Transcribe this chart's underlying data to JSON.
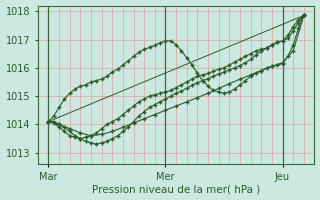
{
  "xlabel": "Pression niveau de la mer( hPa )",
  "ylim": [
    1012.6,
    1018.2
  ],
  "xlim": [
    0,
    52
  ],
  "yticks": [
    1013,
    1014,
    1015,
    1016,
    1017,
    1018
  ],
  "xticks": [
    2,
    24,
    46
  ],
  "xticklabels": [
    "Mar",
    "Mer",
    "Jeu"
  ],
  "vlines_major": [
    2,
    24,
    46
  ],
  "bg_color": "#cce8e0",
  "grid_color_v": "#e8a0a0",
  "grid_color_h": "#e8a0a0",
  "line_color": "#2a5c2a",
  "line_color_light": "#4a8a4a",
  "line1_x": [
    2,
    3,
    4,
    5,
    6,
    7,
    8,
    9,
    10,
    11,
    12,
    13,
    14,
    15,
    16,
    17,
    18,
    19,
    20,
    21,
    22,
    23,
    24,
    25,
    26,
    27,
    28,
    29,
    30,
    31,
    32,
    33,
    34,
    35,
    36,
    37,
    38,
    39,
    40,
    41,
    42,
    43,
    44,
    45,
    46,
    47,
    48,
    49,
    50
  ],
  "line1_y": [
    1014.1,
    1014.05,
    1013.9,
    1013.75,
    1013.6,
    1013.55,
    1013.5,
    1013.55,
    1013.6,
    1013.7,
    1013.85,
    1014.0,
    1014.1,
    1014.2,
    1014.35,
    1014.5,
    1014.65,
    1014.8,
    1014.9,
    1015.0,
    1015.05,
    1015.1,
    1015.15,
    1015.2,
    1015.3,
    1015.4,
    1015.5,
    1015.6,
    1015.7,
    1015.75,
    1015.8,
    1015.88,
    1015.95,
    1016.0,
    1016.1,
    1016.2,
    1016.3,
    1016.4,
    1016.5,
    1016.6,
    1016.65,
    1016.7,
    1016.8,
    1016.9,
    1016.95,
    1017.05,
    1017.3,
    1017.6,
    1017.85
  ],
  "line2_x": [
    2,
    3,
    4,
    5,
    6,
    7,
    8,
    9,
    10,
    11,
    12,
    13,
    14,
    15,
    16,
    17,
    18,
    19,
    20,
    21,
    22,
    23,
    24,
    25,
    26,
    27,
    28,
    29,
    30,
    31,
    32,
    33,
    34,
    35,
    36,
    37,
    38,
    39,
    40,
    41,
    42,
    43,
    44,
    45,
    46,
    47,
    48,
    49,
    50
  ],
  "line2_y": [
    1014.1,
    1014.3,
    1014.6,
    1014.9,
    1015.1,
    1015.25,
    1015.35,
    1015.4,
    1015.5,
    1015.55,
    1015.6,
    1015.7,
    1015.85,
    1015.95,
    1016.1,
    1016.25,
    1016.4,
    1016.55,
    1016.65,
    1016.72,
    1016.8,
    1016.88,
    1016.95,
    1016.95,
    1016.82,
    1016.6,
    1016.35,
    1016.1,
    1015.8,
    1015.55,
    1015.35,
    1015.2,
    1015.15,
    1015.1,
    1015.15,
    1015.25,
    1015.4,
    1015.55,
    1015.7,
    1015.8,
    1015.9,
    1016.0,
    1016.05,
    1016.1,
    1016.15,
    1016.4,
    1016.8,
    1017.4,
    1017.85
  ],
  "line3_x": [
    2,
    3,
    4,
    5,
    6,
    7,
    8,
    9,
    10,
    11,
    12,
    13,
    14,
    15,
    16,
    17,
    18,
    19,
    20,
    21,
    22,
    23,
    24,
    25,
    26,
    27,
    28,
    29,
    30,
    31,
    32,
    33,
    34,
    35,
    36,
    37,
    38,
    39,
    40,
    41,
    42,
    43,
    44,
    45,
    46,
    47,
    48,
    49,
    50
  ],
  "line3_y": [
    1014.1,
    1014.1,
    1014.0,
    1013.9,
    1013.75,
    1013.6,
    1013.5,
    1013.4,
    1013.35,
    1013.3,
    1013.35,
    1013.4,
    1013.5,
    1013.6,
    1013.75,
    1013.9,
    1014.1,
    1014.3,
    1014.45,
    1014.6,
    1014.7,
    1014.8,
    1014.9,
    1015.0,
    1015.1,
    1015.18,
    1015.28,
    1015.38,
    1015.48,
    1015.55,
    1015.62,
    1015.7,
    1015.78,
    1015.85,
    1015.93,
    1016.0,
    1016.08,
    1016.18,
    1016.3,
    1016.45,
    1016.58,
    1016.7,
    1016.82,
    1016.9,
    1016.95,
    1017.15,
    1017.45,
    1017.7,
    1017.85
  ],
  "line4_x": [
    2,
    4,
    6,
    8,
    10,
    12,
    14,
    16,
    18,
    20,
    22,
    24,
    26,
    28,
    30,
    32,
    34,
    36,
    38,
    40,
    42,
    44,
    46,
    48,
    50
  ],
  "line4_y": [
    1014.1,
    1014.0,
    1013.85,
    1013.7,
    1013.6,
    1013.65,
    1013.75,
    1013.9,
    1014.05,
    1014.2,
    1014.35,
    1014.5,
    1014.65,
    1014.8,
    1014.95,
    1015.1,
    1015.27,
    1015.44,
    1015.6,
    1015.75,
    1015.9,
    1016.05,
    1016.18,
    1016.6,
    1017.85
  ],
  "line5_x": [
    2,
    50
  ],
  "line5_y": [
    1014.1,
    1017.85
  ]
}
